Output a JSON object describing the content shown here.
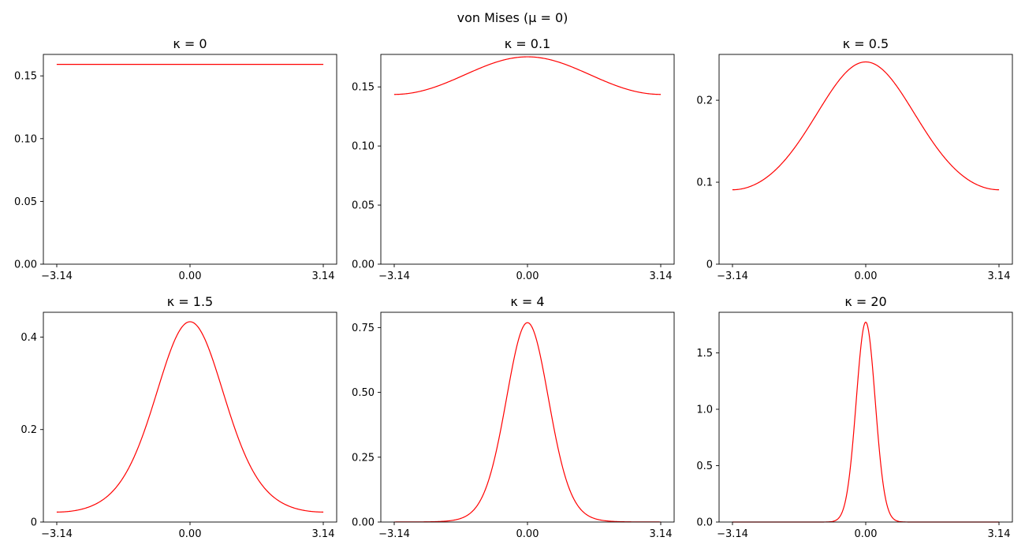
{
  "figure": {
    "title": "von Mises (μ = 0)"
  },
  "chart_data": [
    {
      "type": "line",
      "title": "κ = 0",
      "kappa": 0,
      "mu": 0,
      "x_range": [
        -3.14159,
        3.14159
      ],
      "xticks": [
        -3.14,
        0.0,
        3.14
      ],
      "xtick_labels": [
        "−3.14",
        "0.00",
        "3.14"
      ],
      "ylim": [
        0,
        0.1671
      ],
      "yticks": [
        0,
        0.05,
        0.1,
        0.15
      ],
      "ytick_labels": [
        "0.00",
        "0.05",
        "0.10",
        "0.15"
      ],
      "series": [
        {
          "x": [
            -3.14,
            -1.57,
            0.0,
            1.57,
            3.14
          ],
          "y": [
            0.159,
            0.159,
            0.159,
            0.159,
            0.159
          ],
          "color": "#ff0000"
        }
      ]
    },
    {
      "type": "line",
      "title": "κ = 0.1",
      "kappa": 0.1,
      "mu": 0,
      "x_range": [
        -3.14159,
        3.14159
      ],
      "xticks": [
        -3.14,
        0.0,
        3.14
      ],
      "xtick_labels": [
        "−3.14",
        "0.00",
        "3.14"
      ],
      "ylim": [
        0,
        0.1775
      ],
      "yticks": [
        0,
        0.05,
        0.1,
        0.15
      ],
      "ytick_labels": [
        "0.00",
        "0.05",
        "0.10",
        "0.15"
      ],
      "series": [
        {
          "x": [
            -3.14,
            -1.57,
            0.0,
            1.57,
            3.14
          ],
          "y": [
            0.143,
            0.158,
            0.175,
            0.158,
            0.143
          ],
          "color": "#ff0000"
        }
      ]
    },
    {
      "type": "line",
      "title": "κ = 0.5",
      "kappa": 0.5,
      "mu": 0,
      "x_range": [
        -3.14159,
        3.14159
      ],
      "xticks": [
        -3.14,
        0.0,
        3.14
      ],
      "xtick_labels": [
        "−3.14",
        "0.00",
        "3.14"
      ],
      "ylim": [
        0,
        0.2559
      ],
      "yticks": [
        0,
        0.1,
        0.2
      ],
      "ytick_labels": [
        "0",
        "0.1",
        "0.2"
      ],
      "series": [
        {
          "x": [
            -3.14,
            -1.57,
            0.0,
            1.57,
            3.14
          ],
          "y": [
            0.091,
            0.15,
            0.247,
            0.15,
            0.091
          ],
          "color": "#ff0000"
        }
      ]
    },
    {
      "type": "line",
      "title": "κ = 1.5",
      "kappa": 1.5,
      "mu": 0,
      "x_range": [
        -3.14159,
        3.14159
      ],
      "xticks": [
        -3.14,
        0.0,
        3.14
      ],
      "xtick_labels": [
        "−3.14",
        "0.00",
        "3.14"
      ],
      "ylim": [
        0,
        0.4536
      ],
      "yticks": [
        0,
        0.2,
        0.4
      ],
      "ytick_labels": [
        "0",
        "0.2",
        "0.4"
      ],
      "series": [
        {
          "x": [
            -3.14,
            -1.57,
            0.0,
            1.57,
            3.14
          ],
          "y": [
            0.021,
            0.097,
            0.434,
            0.097,
            0.021
          ],
          "color": "#ff0000"
        }
      ]
    },
    {
      "type": "line",
      "title": "κ = 4",
      "kappa": 4,
      "mu": 0,
      "x_range": [
        -3.14159,
        3.14159
      ],
      "xticks": [
        -3.14,
        0.0,
        3.14
      ],
      "xtick_labels": [
        "−3.14",
        "0.00",
        "3.14"
      ],
      "ylim": [
        0,
        0.8089
      ],
      "yticks": [
        0,
        0.25,
        0.5,
        0.75
      ],
      "ytick_labels": [
        "0.00",
        "0.25",
        "0.50",
        "0.75"
      ],
      "series": [
        {
          "x": [
            -3.14,
            -1.57,
            0.0,
            1.57,
            3.14
          ],
          "y": [
            0.0003,
            0.0141,
            0.77,
            0.0141,
            0.0003
          ],
          "color": "#ff0000"
        }
      ]
    },
    {
      "type": "line",
      "title": "κ = 20",
      "kappa": 20,
      "mu": 0,
      "x_range": [
        -3.14159,
        3.14159
      ],
      "xticks": [
        -3.14,
        0.0,
        3.14
      ],
      "xtick_labels": [
        "−3.14",
        "0.00",
        "3.14"
      ],
      "ylim": [
        0,
        1.8603
      ],
      "yticks": [
        0,
        0.5,
        1.0,
        1.5
      ],
      "ytick_labels": [
        "0.0",
        "0.5",
        "1.0",
        "1.5"
      ],
      "series": [
        {
          "x": [
            -3.14,
            -0.5,
            0.0,
            0.5,
            3.14
          ],
          "y": [
            0.0,
            0.0157,
            1.77,
            0.0157,
            0.0
          ],
          "color": "#ff0000"
        }
      ]
    }
  ]
}
